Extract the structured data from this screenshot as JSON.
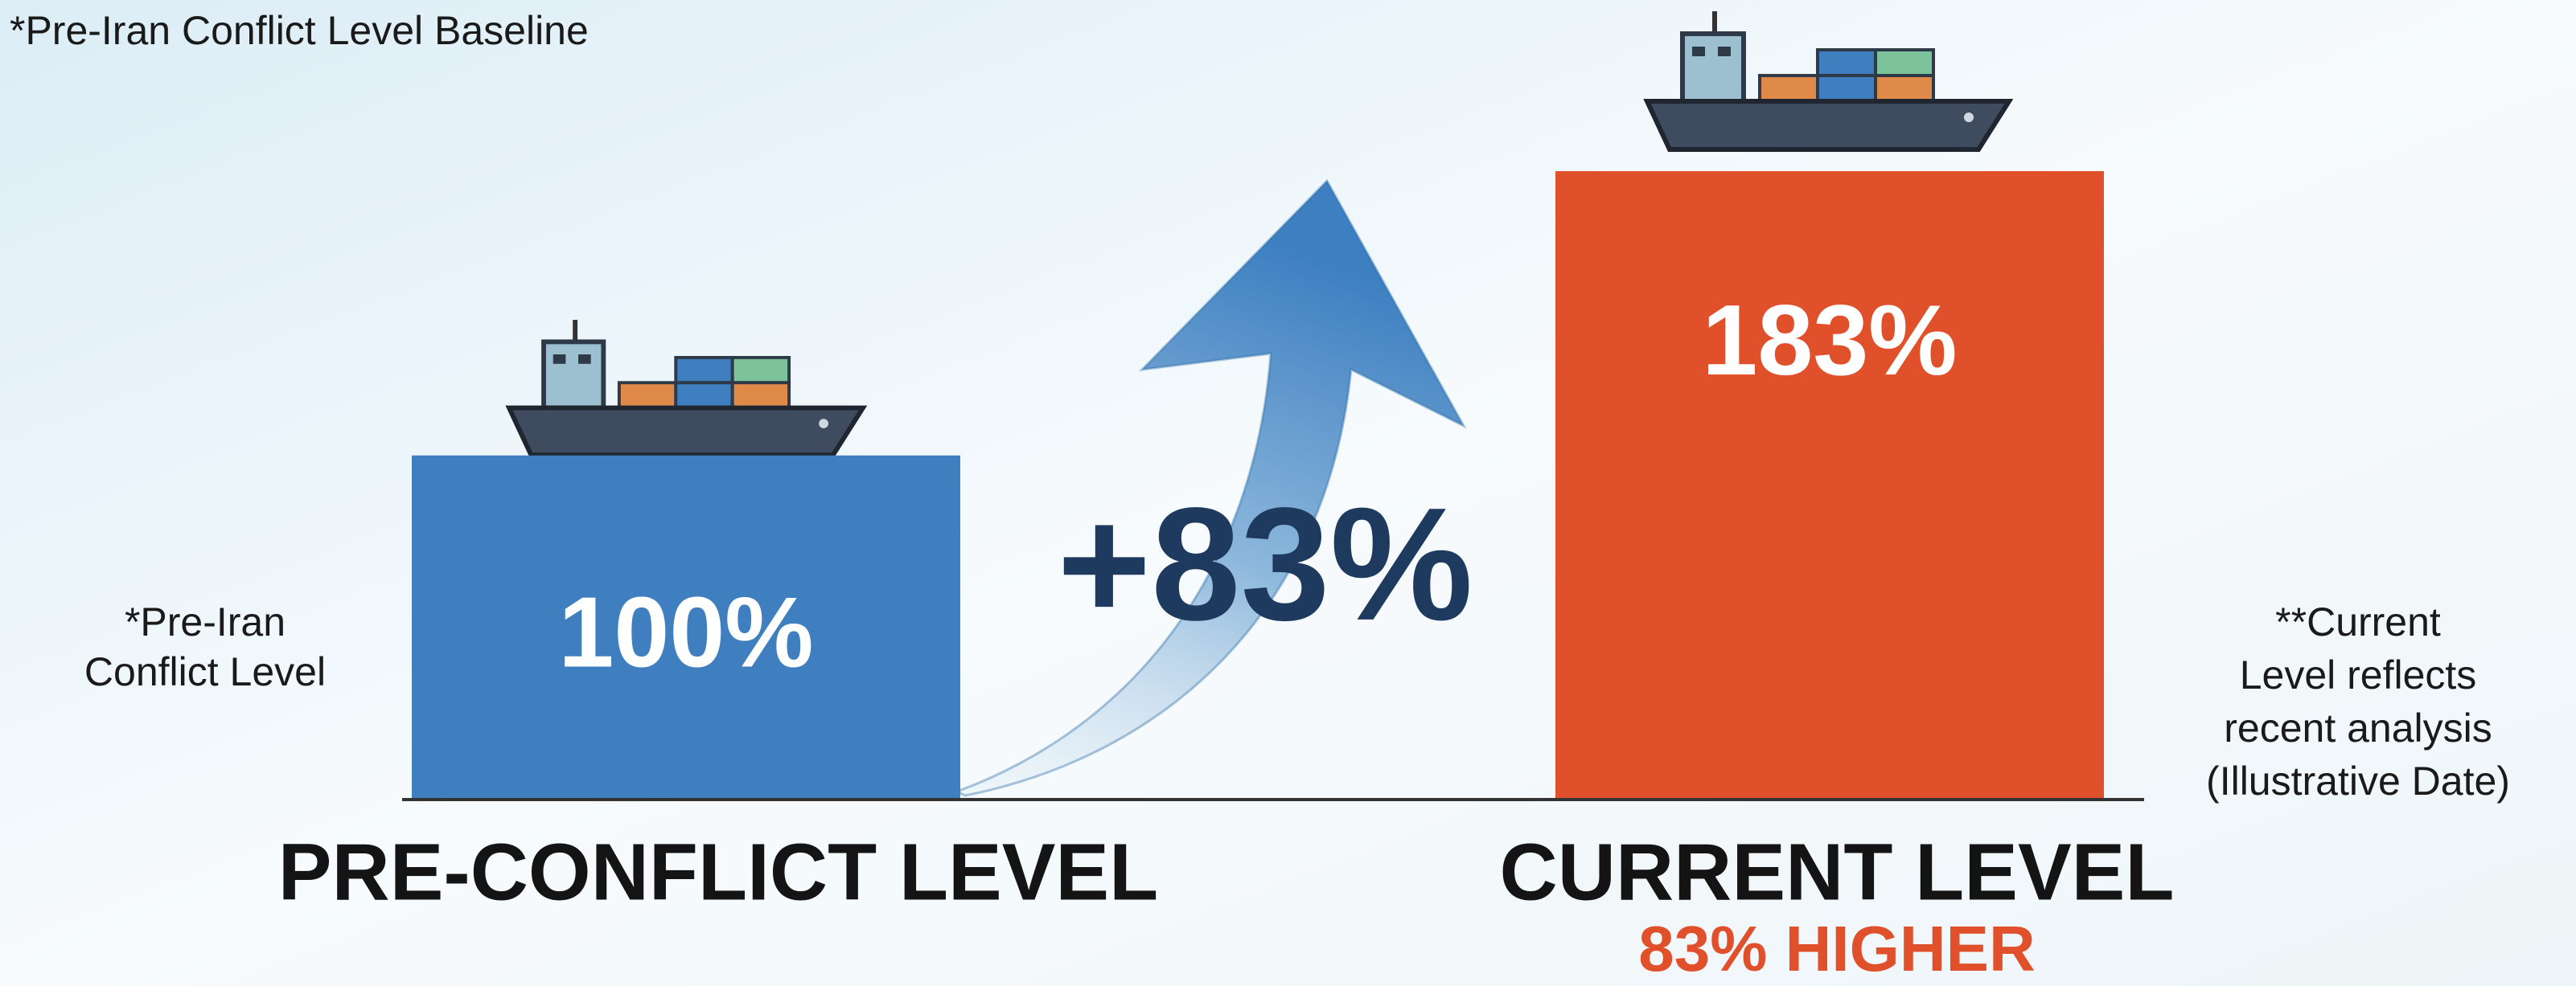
{
  "chart_data": {
    "type": "bar",
    "categories": [
      "PRE-CONFLICT LEVEL",
      "CURRENT LEVEL"
    ],
    "values": [
      100,
      183
    ],
    "value_labels": [
      "100%",
      "183%"
    ],
    "colors": [
      "#3f7fc0",
      "#e0502a"
    ],
    "baseline_note": "*Pre-Iran Conflict Level Baseline",
    "left_note": [
      "*Pre-Iran",
      "Conflict Level"
    ],
    "right_note": [
      "**Current",
      "Level reflects",
      "recent analysis",
      "(Illustrative Date)"
    ],
    "change_label": "+83%",
    "change_note": "83% HIGHER"
  }
}
